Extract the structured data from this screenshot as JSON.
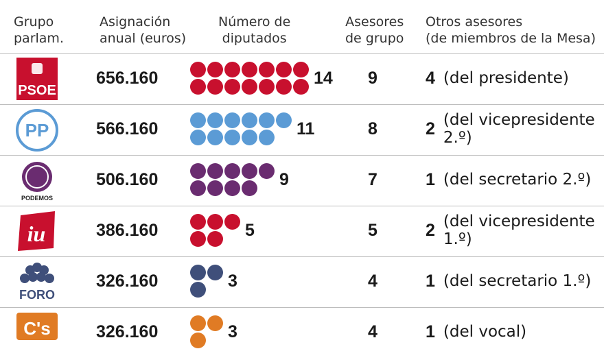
{
  "title": "",
  "headers": {
    "group": [
      "Grupo",
      "parlam."
    ],
    "allocation": [
      "Asignación",
      "anual (euros)"
    ],
    "deputies": [
      "Número de",
      "diputados"
    ],
    "advisors": [
      "Asesores",
      "de grupo"
    ],
    "others": [
      "Otros asesores",
      "(de miembros de la Mesa)"
    ]
  },
  "colors": {
    "psoe": "#c8102e",
    "pp": "#5b9bd5",
    "podemos": "#6a2c70",
    "iu": "#c8102e",
    "foro": "#3f4f7a",
    "cs": "#e07b24"
  },
  "rows": [
    {
      "party": "PSOE",
      "logo_text": "PSOE",
      "allocation": "656.160",
      "deputies": 14,
      "deputies_label": "14",
      "advisors": "9",
      "others_count": "4",
      "others_text": "(del presidente)"
    },
    {
      "party": "PP",
      "logo_text": "PP",
      "allocation": "566.160",
      "deputies": 11,
      "deputies_label": "11",
      "advisors": "8",
      "others_count": "2",
      "others_text": "(del vicepresidente 2.º)"
    },
    {
      "party": "Podemos",
      "logo_text": "PODEMOS",
      "allocation": "506.160",
      "deputies": 9,
      "deputies_label": "9",
      "advisors": "7",
      "others_count": "1",
      "others_text": "(del secretario 2.º)"
    },
    {
      "party": "IU",
      "logo_text": "iu",
      "allocation": "386.160",
      "deputies": 5,
      "deputies_label": "5",
      "advisors": "5",
      "others_count": "2",
      "others_text": "(del vicepresidente 1.º)"
    },
    {
      "party": "Foro",
      "logo_text": "FORO",
      "allocation": "326.160",
      "deputies": 3,
      "deputies_label": "3",
      "advisors": "4",
      "others_count": "1",
      "others_text": "(del secretario 1.º)"
    },
    {
      "party": "Cs",
      "logo_text": "C's",
      "allocation": "326.160",
      "deputies": 3,
      "deputies_label": "3",
      "advisors": "4",
      "others_count": "1",
      "others_text": "(del vocal)"
    }
  ]
}
